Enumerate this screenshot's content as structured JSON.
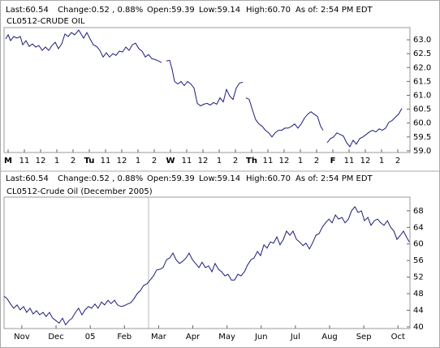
{
  "chart_data": [
    {
      "type": "line",
      "header": [
        {
          "text": "Last:60.54",
          "color": "#000000"
        },
        {
          "text": "Change:0.52 , 0.88%",
          "color": "#2a9a2a"
        },
        {
          "text": "Open:59.39",
          "color": "#000000"
        },
        {
          "text": "Low:59.14",
          "color": "#000000"
        },
        {
          "text": "High:60.70",
          "color": "#000000"
        },
        {
          "text": "As of: 2:54 PM EDT",
          "color": "#000000"
        }
      ],
      "title": "CL0512-CRUDE OIL",
      "xlim": [
        -0.25,
        24.75
      ],
      "xticks": [
        {
          "value": 0,
          "label": "M"
        },
        {
          "value": 1,
          "label": "11"
        },
        {
          "value": 2,
          "label": "12"
        },
        {
          "value": 3,
          "label": "1"
        },
        {
          "value": 4,
          "label": "2"
        },
        {
          "value": 5,
          "label": "Tu"
        },
        {
          "value": 6,
          "label": "11"
        },
        {
          "value": 7,
          "label": "12"
        },
        {
          "value": 8,
          "label": "1"
        },
        {
          "value": 9,
          "label": "2"
        },
        {
          "value": 10,
          "label": "W"
        },
        {
          "value": 11,
          "label": "11"
        },
        {
          "value": 12,
          "label": "12"
        },
        {
          "value": 13,
          "label": "1"
        },
        {
          "value": 14,
          "label": "2"
        },
        {
          "value": 15,
          "label": "Th"
        },
        {
          "value": 16,
          "label": "11"
        },
        {
          "value": 17,
          "label": "12"
        },
        {
          "value": 18,
          "label": "1"
        },
        {
          "value": 19,
          "label": "2"
        },
        {
          "value": 20,
          "label": "F"
        },
        {
          "value": 21,
          "label": "11"
        },
        {
          "value": 22,
          "label": "12"
        },
        {
          "value": 23,
          "label": "1"
        },
        {
          "value": 24,
          "label": "2"
        }
      ],
      "ylim": [
        58.94,
        63.44
      ],
      "yticks": [
        {
          "value": 63,
          "label": "63.0"
        },
        62.5,
        {
          "value": 62,
          "label": "62.0"
        },
        61.5,
        {
          "value": 61,
          "label": "61.0"
        },
        60.5,
        {
          "value": 60,
          "label": "60.0"
        },
        59.5,
        {
          "value": 59,
          "label": "59.0"
        }
      ],
      "x": [
        -0.15,
        0,
        0.15,
        0.35,
        0.55,
        0.75,
        0.9,
        1.1,
        1.3,
        1.5,
        1.7,
        1.9,
        2.1,
        2.3,
        2.5,
        2.7,
        2.9,
        3.1,
        3.3,
        3.5,
        3.7,
        3.9,
        4.1,
        4.35,
        4.65,
        4.85,
        5.05,
        5.25,
        5.45,
        5.65,
        5.85,
        6.05,
        6.25,
        6.45,
        6.65,
        6.85,
        7.05,
        7.25,
        7.45,
        7.65,
        7.85,
        8.05,
        8.25,
        8.45,
        8.65,
        8.85,
        9.05,
        9.25,
        9.45,
        9.6,
        9.75,
        9.95,
        10.1,
        10.25,
        10.45,
        10.65,
        10.85,
        11.05,
        11.25,
        11.45,
        11.65,
        11.85,
        12.05,
        12.25,
        12.45,
        12.65,
        12.85,
        13.05,
        13.25,
        13.45,
        13.65,
        13.85,
        14.05,
        14.25,
        14.45,
        14.55,
        14.65,
        14.85,
        15.05,
        15.25,
        15.45,
        15.65,
        15.85,
        16.05,
        16.25,
        16.45,
        16.65,
        16.85,
        17.05,
        17.25,
        17.45,
        17.65,
        17.85,
        18.05,
        18.25,
        18.45,
        18.65,
        18.85,
        19.05,
        19.25,
        19.4,
        19.52,
        19.65,
        19.85,
        20.05,
        20.25,
        20.45,
        20.65,
        20.85,
        21.05,
        21.25,
        21.45,
        21.65,
        21.85,
        22.05,
        22.25,
        22.45,
        22.65,
        22.85,
        23.05,
        23.25,
        23.45,
        23.65,
        23.85,
        24.05,
        24.25
      ],
      "series": [
        {
          "color": "#1c1c7a",
          "values": [
            63.03,
            63.18,
            62.97,
            63.12,
            63.06,
            63.12,
            62.82,
            62.97,
            62.76,
            62.85,
            62.74,
            62.79,
            62.62,
            62.74,
            62.62,
            62.79,
            62.91,
            62.68,
            62.85,
            63.21,
            63.12,
            63.26,
            63.18,
            63.35,
            63.06,
            63.26,
            63.03,
            62.82,
            62.76,
            62.62,
            62.38,
            62.53,
            62.38,
            62.5,
            62.44,
            62.59,
            62.56,
            62.74,
            62.62,
            62.82,
            62.88,
            62.68,
            62.59,
            62.38,
            62.47,
            62.32,
            62.29,
            62.24,
            62.18,
            null,
            62.24,
            62.26,
            61.94,
            61.5,
            61.41,
            61.5,
            61.35,
            61.5,
            61.41,
            61.26,
            60.71,
            60.62,
            60.68,
            60.71,
            60.65,
            60.74,
            60.68,
            60.91,
            60.76,
            61.21,
            60.97,
            60.85,
            61.26,
            61.44,
            61.47,
            null,
            60.91,
            60.85,
            60.47,
            60.12,
            59.97,
            59.88,
            59.74,
            59.65,
            59.5,
            59.65,
            59.74,
            59.74,
            59.82,
            59.82,
            59.88,
            59.97,
            59.82,
            59.97,
            60.18,
            60.32,
            60.41,
            60.32,
            60.24,
            59.88,
            59.74,
            null,
            59.29,
            59.44,
            59.5,
            59.65,
            59.59,
            59.53,
            59.29,
            59.15,
            59.38,
            59.24,
            59.44,
            59.5,
            59.59,
            59.68,
            59.74,
            59.68,
            59.79,
            59.74,
            59.82,
            60.03,
            60.09,
            60.21,
            60.32,
            60.53
          ]
        }
      ]
    },
    {
      "type": "line",
      "header": [
        {
          "text": "Last:60.54",
          "color": "#000000"
        },
        {
          "text": "Change:0.52 , 0.88%",
          "color": "#2a9a2a"
        },
        {
          "text": "Open:59.39",
          "color": "#000000"
        },
        {
          "text": "Low:59.14",
          "color": "#000000"
        },
        {
          "text": "High:60.70",
          "color": "#000000"
        },
        {
          "text": "As of: 2:54 PM EDT",
          "color": "#000000"
        }
      ],
      "title": "CL0512-Crude Oil (December 2005)",
      "xlim": [
        -0.52,
        11.35
      ],
      "xticks": [
        {
          "value": 0,
          "label": "Nov"
        },
        {
          "value": 1,
          "label": "Dec"
        },
        {
          "value": 2,
          "label": "05"
        },
        {
          "value": 3,
          "label": "Feb"
        },
        {
          "value": 4,
          "label": "Mar"
        },
        {
          "value": 5,
          "label": "Apr"
        },
        {
          "value": 6,
          "label": "May"
        },
        {
          "value": 7,
          "label": "Jun"
        },
        {
          "value": 8,
          "label": "Jul"
        },
        {
          "value": 9,
          "label": "Aug"
        },
        {
          "value": 10,
          "label": "Sep"
        },
        {
          "value": 11,
          "label": "Oct"
        }
      ],
      "ylim": [
        39.6,
        71.3
      ],
      "yticks": [
        68,
        64,
        60,
        56,
        52,
        48,
        44,
        40
      ],
      "x": [
        -0.52,
        -0.43,
        -0.33,
        -0.24,
        -0.14,
        -0.05,
        0.05,
        0.14,
        0.24,
        0.33,
        0.43,
        0.52,
        0.62,
        0.71,
        0.81,
        0.9,
        1.0,
        1.09,
        1.19,
        1.28,
        1.38,
        1.47,
        1.57,
        1.66,
        1.76,
        1.85,
        1.95,
        2.04,
        2.14,
        2.23,
        2.33,
        2.42,
        2.52,
        2.61,
        2.71,
        2.8,
        2.9,
        2.99,
        3.09,
        3.18,
        3.28,
        3.37,
        3.47,
        3.56,
        3.66,
        3.75,
        3.85,
        3.94,
        4.04,
        4.13,
        4.23,
        4.32,
        4.42,
        4.51,
        4.61,
        4.7,
        4.8,
        4.89,
        4.99,
        5.08,
        5.18,
        5.27,
        5.37,
        5.46,
        5.56,
        5.65,
        5.75,
        5.84,
        5.94,
        6.03,
        6.13,
        6.22,
        6.32,
        6.41,
        6.51,
        6.6,
        6.7,
        6.79,
        6.89,
        6.98,
        7.08,
        7.17,
        7.27,
        7.36,
        7.46,
        7.55,
        7.65,
        7.74,
        7.84,
        7.93,
        8.03,
        8.12,
        8.22,
        8.31,
        8.41,
        8.5,
        8.6,
        8.69,
        8.79,
        8.88,
        8.98,
        9.07,
        9.17,
        9.26,
        9.36,
        9.45,
        9.55,
        9.64,
        9.74,
        9.83,
        9.93,
        10.02,
        10.12,
        10.21,
        10.31,
        10.4,
        10.5,
        10.59,
        10.69,
        10.78,
        10.88,
        10.97,
        11.07,
        11.16,
        11.26,
        11.33
      ],
      "series": [
        {
          "color": "#1c1c7a",
          "values": [
            47.4,
            46.8,
            45.5,
            44.5,
            45.3,
            44.1,
            44.9,
            43.5,
            44.5,
            43.1,
            43.9,
            42.9,
            43.5,
            42.5,
            43.5,
            42.1,
            41.5,
            40.9,
            42.1,
            40.5,
            41.5,
            42.1,
            43.5,
            44.5,
            42.9,
            44.1,
            44.9,
            44.5,
            45.5,
            44.5,
            46.0,
            45.3,
            46.4,
            45.6,
            46.4,
            45.3,
            44.9,
            45.1,
            45.5,
            45.8,
            46.8,
            48.0,
            48.8,
            50.0,
            50.4,
            51.3,
            52.3,
            53.7,
            53.9,
            54.3,
            56.2,
            56.6,
            57.8,
            56.2,
            55.3,
            55.8,
            56.6,
            57.8,
            56.2,
            55.3,
            54.3,
            55.6,
            54.3,
            54.7,
            53.3,
            55.3,
            53.9,
            53.3,
            52.3,
            52.7,
            51.3,
            51.3,
            52.7,
            52.3,
            53.3,
            54.9,
            56.2,
            56.6,
            58.2,
            57.2,
            59.8,
            59.0,
            60.5,
            60.2,
            61.7,
            59.8,
            61.1,
            63.1,
            62.1,
            63.1,
            61.1,
            60.5,
            59.6,
            60.2,
            58.8,
            60.2,
            62.1,
            62.5,
            64.1,
            65.1,
            66.0,
            65.1,
            67.0,
            66.0,
            66.4,
            65.1,
            66.0,
            68.0,
            69.0,
            67.6,
            68.0,
            65.6,
            66.4,
            64.5,
            65.6,
            66.0,
            65.1,
            64.5,
            65.6,
            64.1,
            63.1,
            61.1,
            62.1,
            63.1,
            61.5,
            60.5
          ]
        }
      ]
    }
  ]
}
